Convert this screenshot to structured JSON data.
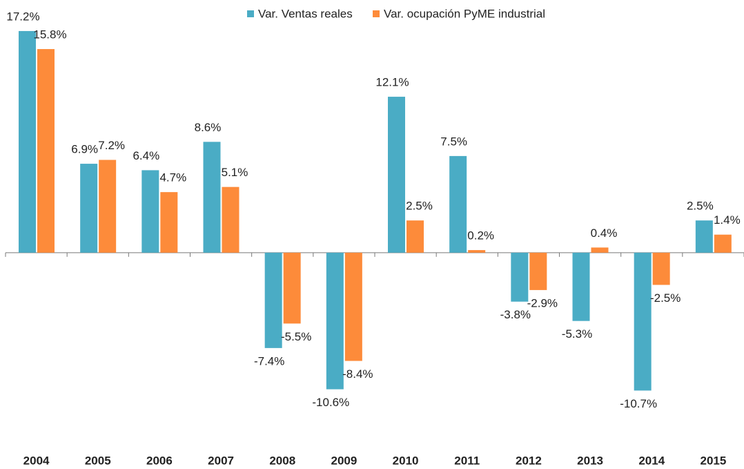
{
  "chart_data": {
    "type": "bar",
    "categories": [
      "2004",
      "2005",
      "2006",
      "2007",
      "2008",
      "2009",
      "2010",
      "2011",
      "2012",
      "2013",
      "2014",
      "2015"
    ],
    "series": [
      {
        "name": "Var. Ventas reales",
        "color": "#4aacc5",
        "values": [
          17.2,
          6.9,
          6.4,
          8.6,
          -7.4,
          -10.6,
          12.1,
          7.5,
          -3.8,
          -5.3,
          -10.7,
          2.5
        ],
        "value_labels": [
          "17.2%",
          "6.9%",
          "6.4%",
          "8.6%",
          "-7.4%",
          "-10.6%",
          "12.1%",
          "7.5%",
          "-3.8%",
          "-5.3%",
          "-10.7%",
          "2.5%"
        ]
      },
      {
        "name": "Var. ocupación PyME industrial",
        "color": "#fd8b3a",
        "values": [
          15.8,
          7.2,
          4.7,
          5.1,
          -5.5,
          -8.4,
          2.5,
          0.2,
          -2.9,
          0.4,
          -2.5,
          1.4
        ],
        "value_labels": [
          "15.8%",
          "7.2%",
          "4.7%",
          "5.1%",
          "-5.5%",
          "-8.4%",
          "2.5%",
          "0.2%",
          "-2.9%",
          "0.4%",
          "-2.5%",
          "1.4%"
        ]
      }
    ],
    "ylim": [
      -14,
      18
    ],
    "legend": "top"
  }
}
